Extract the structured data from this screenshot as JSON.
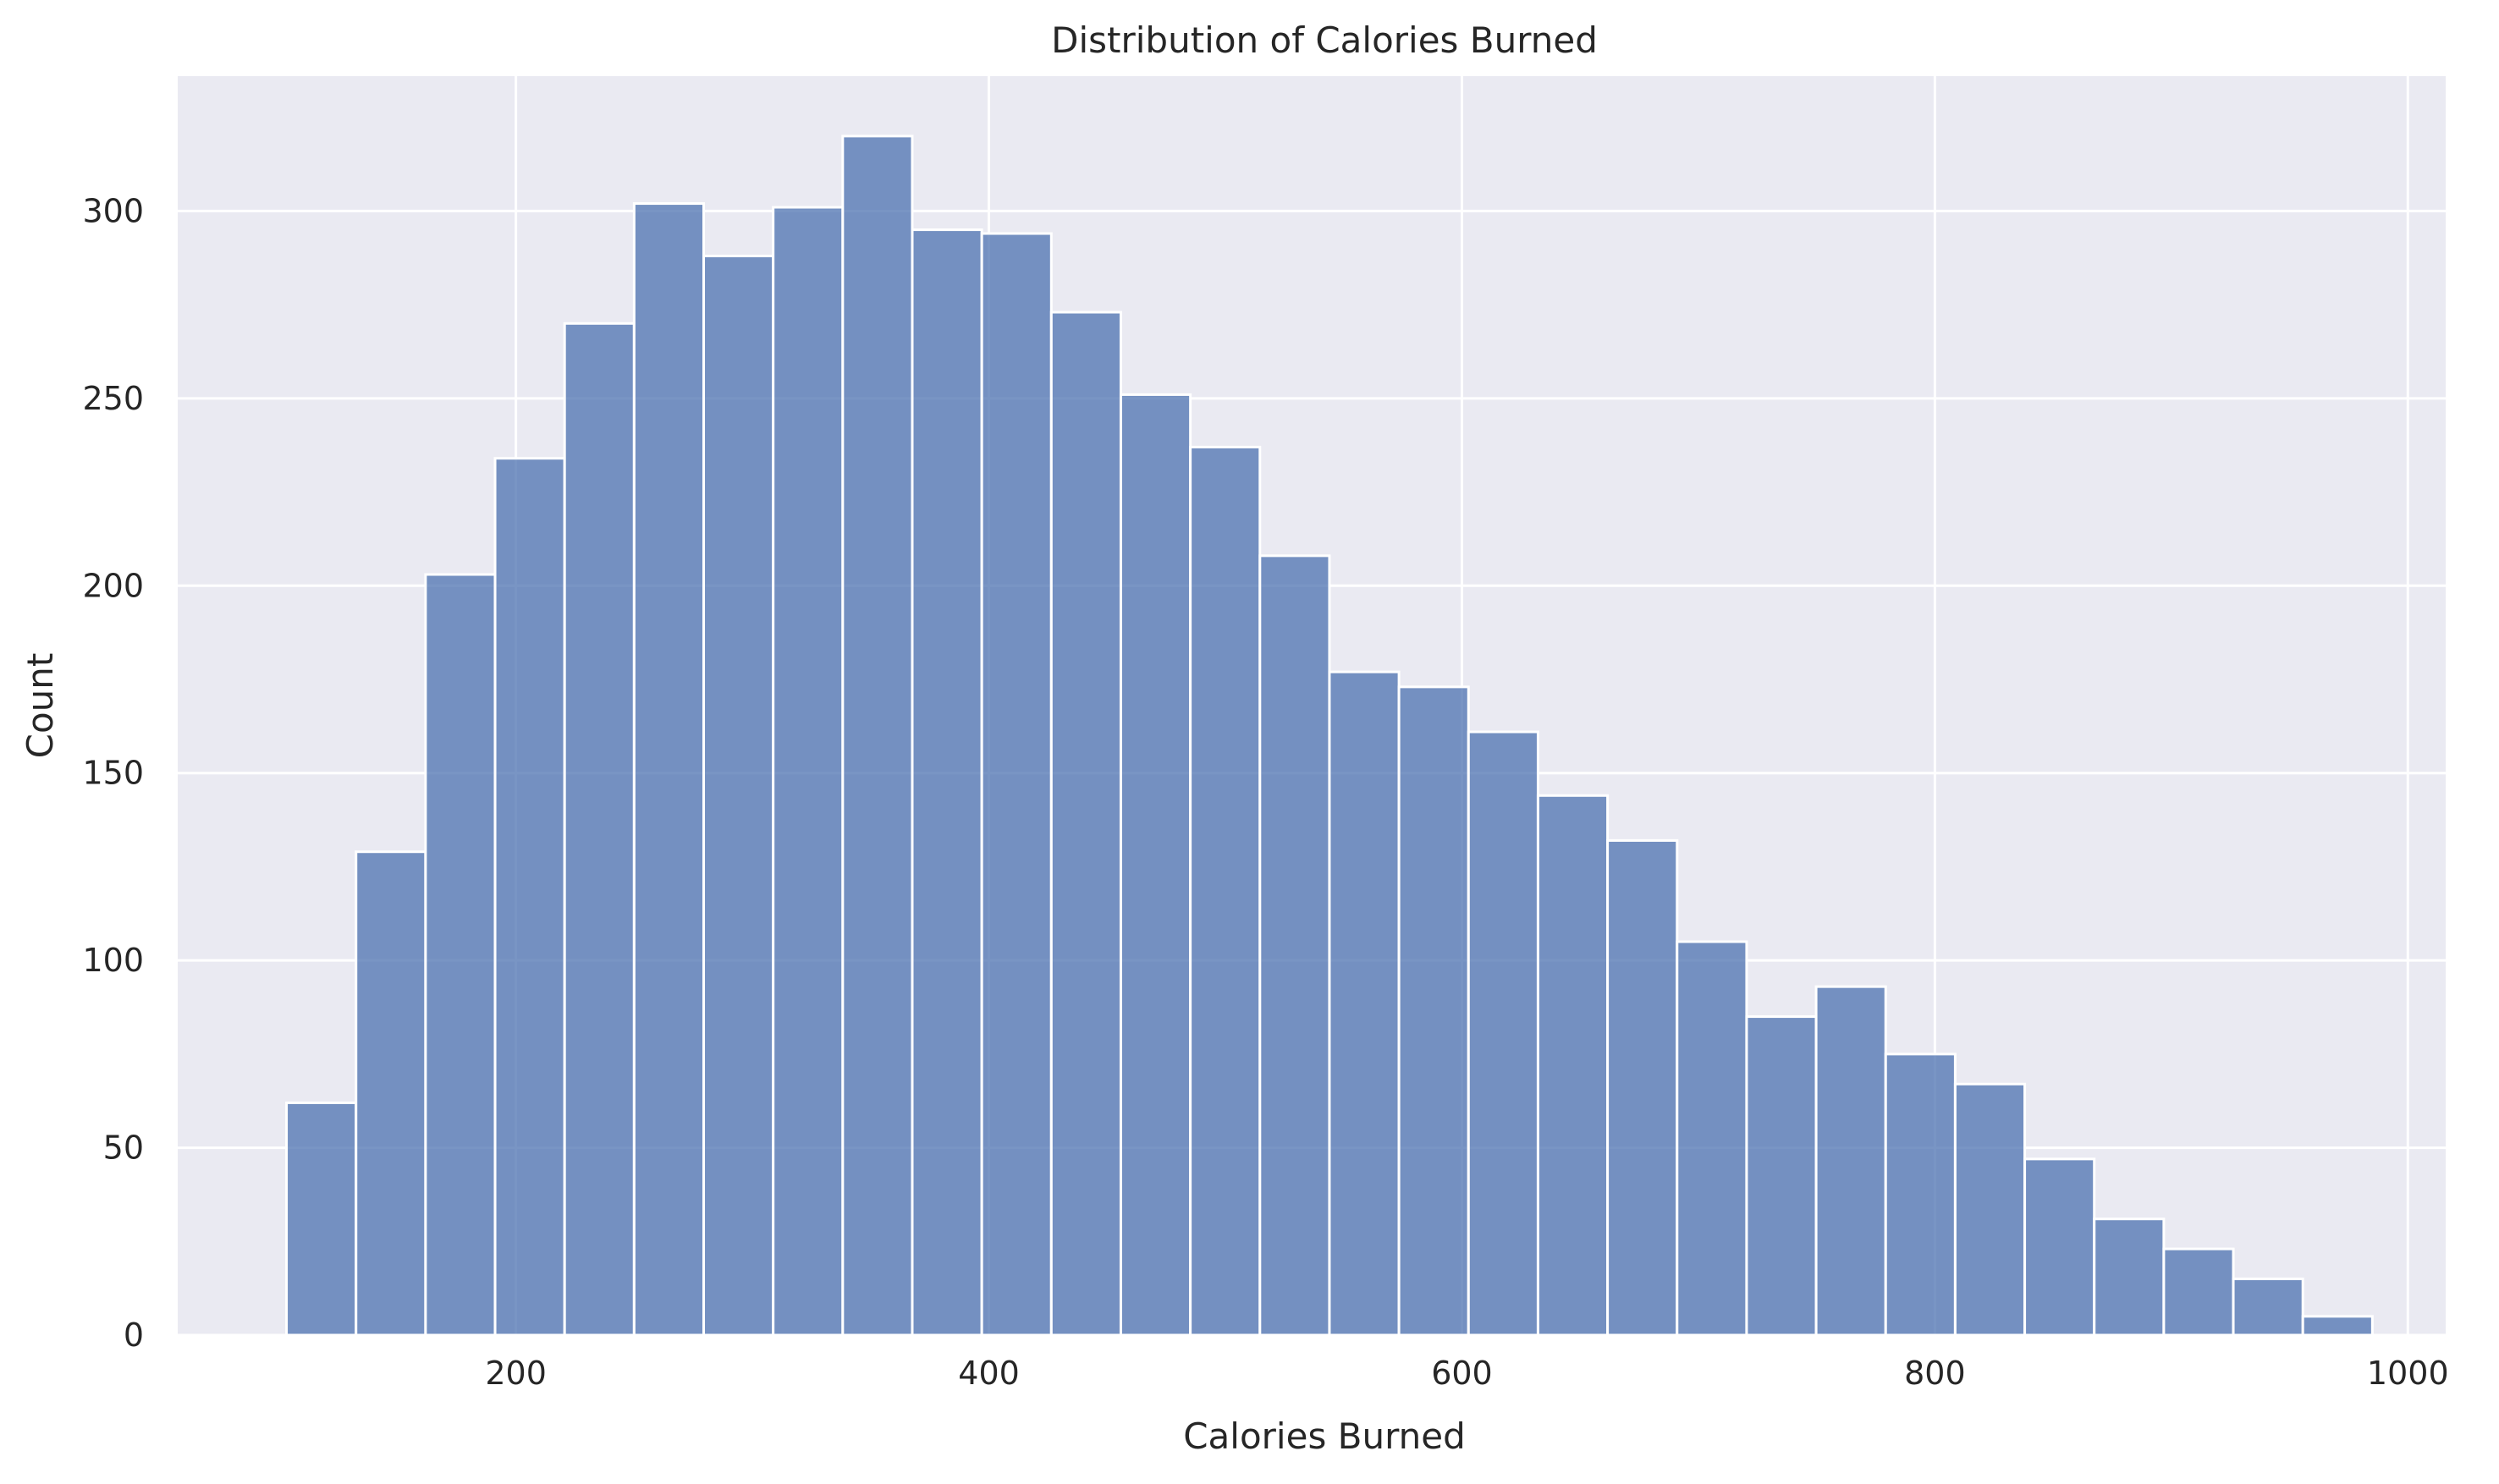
{
  "chart_data": {
    "type": "bar",
    "title": "Distribution of Calories Burned",
    "xlabel": "Calories Burned",
    "ylabel": "Count",
    "xlim": [
      57,
      1016
    ],
    "ylim": [
      0,
      336
    ],
    "xticks": [
      200,
      400,
      600,
      800,
      1000
    ],
    "yticks": [
      0,
      50,
      100,
      150,
      200,
      250,
      300
    ],
    "bin_edges": [
      103.0,
      132.4,
      161.8,
      191.2,
      220.6,
      250.0,
      279.4,
      308.8,
      338.2,
      367.6,
      397.0,
      426.4,
      455.8,
      485.2,
      514.6,
      544.0,
      573.4,
      602.8,
      632.2,
      661.6,
      691.0,
      720.4,
      749.8,
      779.2,
      808.6,
      838.0,
      867.4,
      896.8,
      926.2,
      955.6,
      985.0
    ],
    "values": [
      62,
      129,
      203,
      234,
      270,
      302,
      288,
      301,
      320,
      295,
      294,
      273,
      251,
      237,
      208,
      177,
      173,
      161,
      144,
      132,
      105,
      85,
      93,
      75,
      67,
      47,
      31,
      23,
      15,
      5
    ],
    "grid": true,
    "legend": "none",
    "colors": {
      "bar": "#4c72b0",
      "background": "#eaeaf2",
      "grid": "#ffffff",
      "edge": "#ffffff"
    }
  }
}
